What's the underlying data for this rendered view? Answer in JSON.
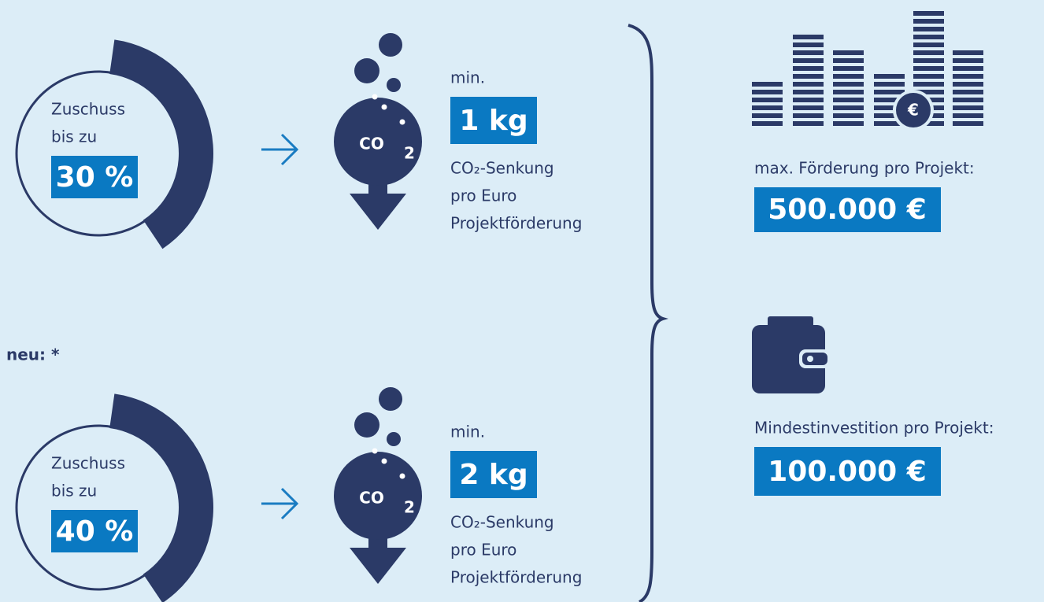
{
  "new_label": "neu: *",
  "rows": [
    {
      "grant": {
        "line1": "Zuschuss",
        "line2": "bis zu",
        "value": "30 %"
      },
      "co2_icon": {
        "text": "CO",
        "sub": "2"
      },
      "reduction": {
        "prefix": "min.",
        "value": "1 kg",
        "line1": "CO₂-Senkung",
        "line2": "pro Euro",
        "line3": "Projektförderung"
      }
    },
    {
      "grant": {
        "line1": "Zuschuss",
        "line2": "bis zu",
        "value": "40 %"
      },
      "co2_icon": {
        "text": "CO",
        "sub": "2"
      },
      "reduction": {
        "prefix": "min.",
        "value": "2 kg",
        "line1": "CO₂-Senkung",
        "line2": "pro Euro",
        "line3": "Projektförderung"
      }
    }
  ],
  "max_funding": {
    "icon_text": "€",
    "label": "max. Förderung pro Projekt:",
    "value": "500.000 €"
  },
  "min_investment": {
    "label": "Mindestinvestition pro Projekt:",
    "value": "100.000 €"
  }
}
